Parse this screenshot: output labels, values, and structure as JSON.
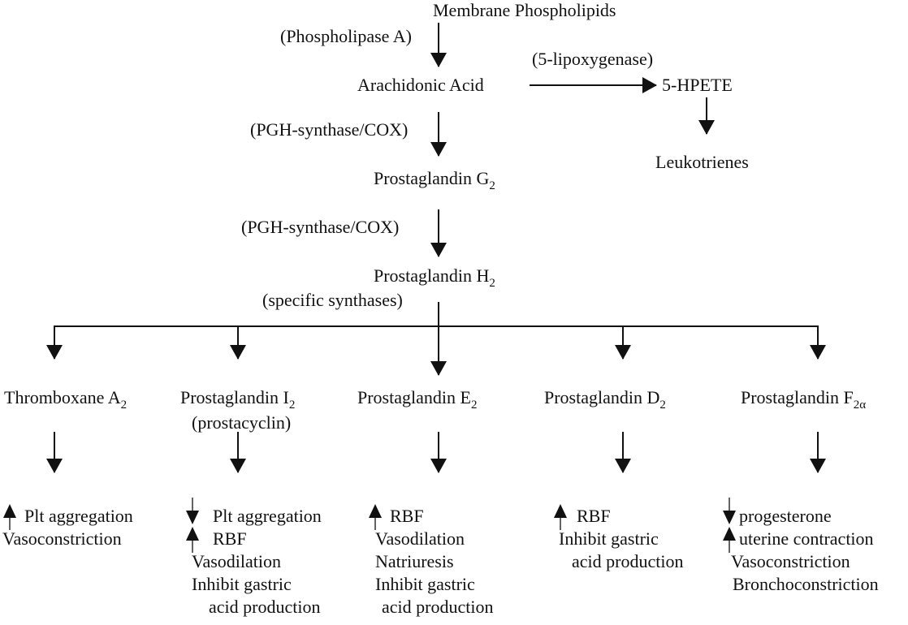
{
  "nodes": {
    "membrane": "Membrane Phospholipids",
    "phospholipase": "(Phospholipase A)",
    "arachidonic": "Arachidonic Acid",
    "lipoxygenase": "(5-lipoxygenase)",
    "hpete": "5-HPETE",
    "leukotrienes": "Leukotrienes",
    "cox1": "(PGH-synthase/COX)",
    "pgg": {
      "base": "Prostaglandin G",
      "sub": "2"
    },
    "cox2": "(PGH-synthase/COX)",
    "pgh": {
      "base": "Prostaglandin H",
      "sub": "2"
    },
    "synthases": "(specific synthases)"
  },
  "products": [
    {
      "base": "Thromboxane A",
      "sub": "2",
      "note": "",
      "effects": [
        {
          "dir": "up",
          "text": "Plt aggregation"
        },
        {
          "dir": "",
          "text": "Vasoconstriction"
        }
      ]
    },
    {
      "base": "Prostaglandin I",
      "sub": "2",
      "note": "(prostacyclin)",
      "effects": [
        {
          "dir": "down",
          "text": "Plt aggregation"
        },
        {
          "dir": "up",
          "text": "RBF"
        },
        {
          "dir": "",
          "text": "Vasodilation"
        },
        {
          "dir": "",
          "text": "Inhibit gastric"
        },
        {
          "dir": "",
          "text": "acid production"
        }
      ]
    },
    {
      "base": "Prostaglandin E",
      "sub": "2",
      "note": "",
      "effects": [
        {
          "dir": "up",
          "text": "RBF"
        },
        {
          "dir": "",
          "text": "Vasodilation"
        },
        {
          "dir": "",
          "text": "Natriuresis"
        },
        {
          "dir": "",
          "text": "Inhibit gastric"
        },
        {
          "dir": "",
          "text": "acid production"
        }
      ]
    },
    {
      "base": "Prostaglandin D",
      "sub": "2",
      "note": "",
      "effects": [
        {
          "dir": "up",
          "text": "RBF"
        },
        {
          "dir": "",
          "text": "Inhibit gastric"
        },
        {
          "dir": "",
          "text": "acid production"
        }
      ]
    },
    {
      "base": "Prostaglandin F",
      "sub": "2α",
      "note": "",
      "effects": [
        {
          "dir": "down",
          "text": "progesterone"
        },
        {
          "dir": "up",
          "text": "uterine contraction"
        },
        {
          "dir": "",
          "text": "Vasoconstriction"
        },
        {
          "dir": "",
          "text": "Bronchoconstriction"
        }
      ]
    }
  ]
}
